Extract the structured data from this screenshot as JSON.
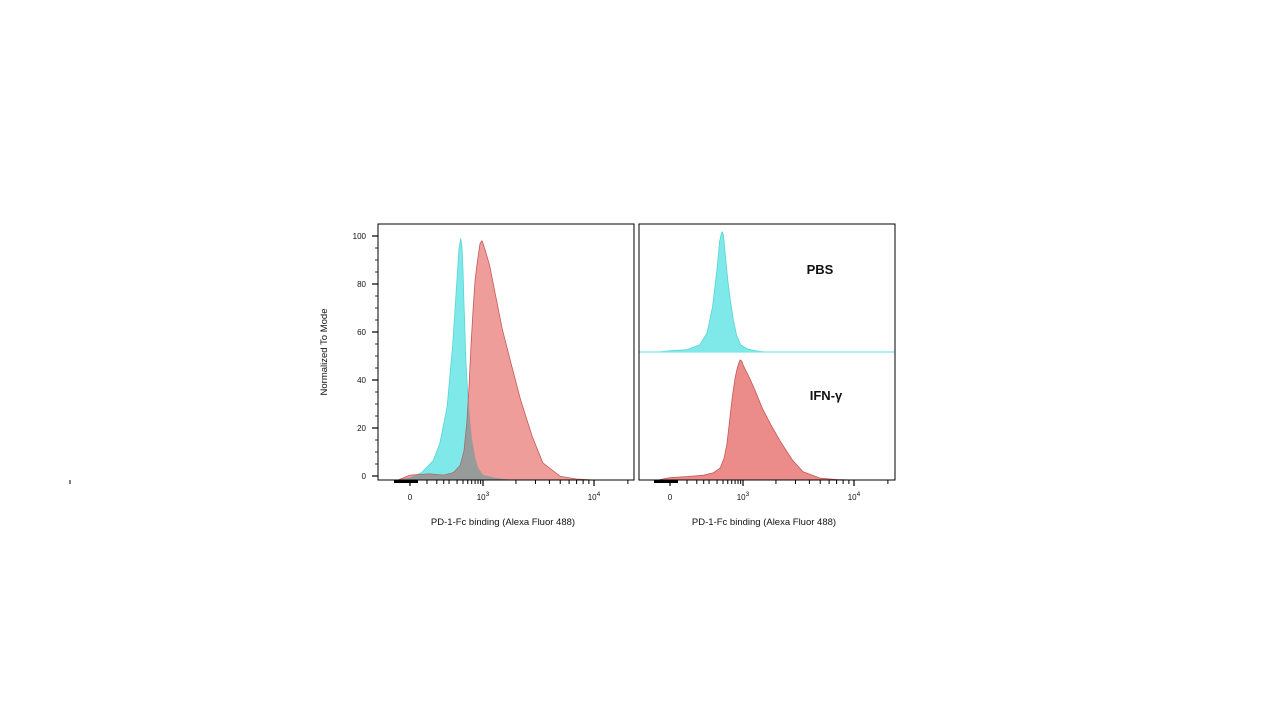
{
  "chart_data": [
    {
      "type": "area",
      "panel": "overlay",
      "ylabel": "Normalized To Mode",
      "xlabel": "PD-1-Fc binding (Alexa Fluor 488)",
      "ylim": [
        0,
        100
      ],
      "y_ticks": [
        0,
        20,
        40,
        60,
        80,
        100
      ],
      "y_tick_labels": [
        "0",
        "20",
        "40",
        "60",
        "80",
        "100"
      ],
      "x_tick_labels": [
        {
          "label": "0",
          "sup": ""
        },
        {
          "label": "10",
          "sup": "3"
        },
        {
          "label": "10",
          "sup": "4"
        }
      ],
      "x_scale": "biexponential",
      "grid": false,
      "series": [
        {
          "color": "#7fe8e8",
          "x": [
            -1,
            0,
            30,
            80,
            120,
            180,
            240,
            300,
            330,
            360,
            380,
            400,
            420,
            440,
            460,
            500,
            550,
            600,
            700,
            800,
            1000,
            1300,
            1800
          ],
          "y": [
            0,
            1,
            3,
            8,
            15,
            30,
            55,
            83,
            95,
            99,
            96,
            86,
            72,
            60,
            48,
            35,
            25,
            17,
            9,
            5,
            2,
            0.8,
            0
          ]
        },
        {
          "color": "#ec8c8a",
          "x": [
            -1,
            0,
            60,
            150,
            250,
            350,
            420,
            480,
            530,
            580,
            640,
            700,
            760,
            820,
            880,
            950,
            1000,
            1050,
            1150,
            1300,
            1500,
            1800,
            2200,
            2800,
            3500,
            5000,
            7000,
            10000
          ],
          "y": [
            0,
            2,
            2.5,
            2,
            3,
            6,
            12,
            24,
            38,
            55,
            70,
            82,
            88,
            93,
            97,
            98,
            97,
            94,
            88,
            76,
            62,
            48,
            33,
            18,
            7,
            1.5,
            0.4,
            0
          ]
        }
      ]
    },
    {
      "type": "area",
      "panel": "offset",
      "xlabel": "PD-1-Fc binding (Alexa Fluor 488)",
      "x_tick_labels": [
        {
          "label": "0",
          "sup": ""
        },
        {
          "label": "10",
          "sup": "3"
        },
        {
          "label": "10",
          "sup": "4"
        }
      ],
      "x_scale": "biexponential",
      "grid": false,
      "series": [
        {
          "name": "PBS",
          "color": "#7fe8e8",
          "x": [
            -1,
            0,
            50,
            120,
            180,
            240,
            300,
            340,
            370,
            390,
            410,
            430,
            460,
            500,
            560,
            650,
            750,
            900,
            1100,
            1300,
            1600
          ],
          "y": [
            0,
            1,
            2,
            6,
            16,
            38,
            70,
            92,
            99,
            100,
            97,
            88,
            75,
            60,
            44,
            26,
            14,
            6,
            2.5,
            1,
            0
          ]
        },
        {
          "name": "IFN-γ",
          "color": "#ec8c8a",
          "x": [
            -1,
            0,
            60,
            150,
            250,
            350,
            420,
            480,
            530,
            580,
            640,
            700,
            760,
            820,
            880,
            950,
            1000,
            1050,
            1150,
            1300,
            1500,
            1800,
            2200,
            2800,
            3500,
            5000,
            7000,
            10000
          ],
          "y": [
            0,
            2,
            3,
            4,
            6,
            10,
            18,
            30,
            45,
            60,
            74,
            85,
            92,
            97,
            100,
            99,
            96,
            92,
            85,
            74,
            60,
            46,
            32,
            17,
            7,
            1.5,
            0.4,
            0
          ]
        }
      ]
    }
  ]
}
